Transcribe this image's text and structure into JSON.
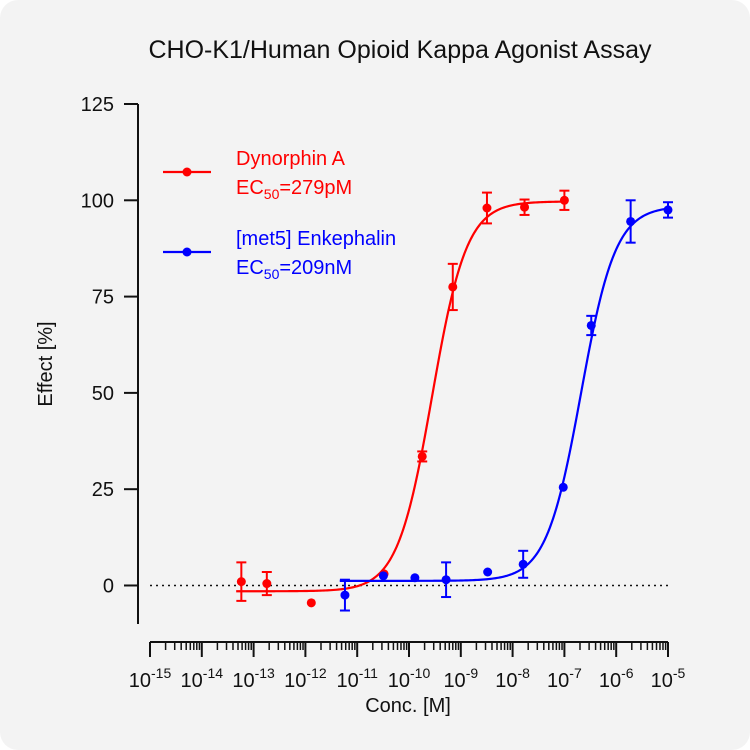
{
  "chart_data": {
    "type": "scatter",
    "title": "CHO-K1/Human Opioid Kappa Agonist Assay",
    "xlabel": "Conc. [M]",
    "ylabel": "Effect  [%]",
    "x_scale": "log10",
    "xlim_exponent": [
      -15,
      -5
    ],
    "ylim": [
      -10,
      125
    ],
    "y_ticks": [
      0,
      25,
      50,
      75,
      100,
      125
    ],
    "x_tick_exponents": [
      -15,
      -14,
      -13,
      -12,
      -11,
      -10,
      -9,
      -8,
      -7,
      -6,
      -5
    ],
    "x_tick_base": "10",
    "reference_line_y": 0,
    "legend_position": "top-left",
    "series": [
      {
        "name": "Dynorphin A",
        "ec50_prefix": "EC",
        "ec50_sub": "50",
        "ec50_value": "=279pM",
        "ec50_molar": 2.79e-10,
        "color": "#ff0000",
        "curve": {
          "bottom": -1.5,
          "top": 99.7,
          "hill": 1.3
        },
        "points": [
          {
            "x": 5.8e-14,
            "y": 1.0,
            "err": 5.0
          },
          {
            "x": 1.8e-13,
            "y": 0.5,
            "err": 3.0
          },
          {
            "x": 1.3e-12,
            "y": -4.5,
            "err": 0
          },
          {
            "x": 3.3e-11,
            "y": 3.0,
            "err": 0
          },
          {
            "x": 1.8e-10,
            "y": 33.5,
            "err": 1.3
          },
          {
            "x": 7e-10,
            "y": 77.5,
            "err": 6.0
          },
          {
            "x": 3.2e-09,
            "y": 98.0,
            "err": 4.0
          },
          {
            "x": 1.7e-08,
            "y": 98.2,
            "err": 2.0
          },
          {
            "x": 1e-07,
            "y": 100.0,
            "err": 2.5
          }
        ]
      },
      {
        "name": "[met5] Enkephalin",
        "ec50_prefix": "EC",
        "ec50_sub": "50",
        "ec50_value": "=209nM",
        "ec50_molar": 2.09e-07,
        "color": "#0000ff",
        "curve": {
          "bottom": 1.2,
          "top": 98.5,
          "hill": 1.3
        },
        "points": [
          {
            "x": 5.8e-12,
            "y": -2.5,
            "err": 4.0
          },
          {
            "x": 3.2e-11,
            "y": 2.5,
            "err": 0
          },
          {
            "x": 1.3e-10,
            "y": 2.0,
            "err": 0
          },
          {
            "x": 5.2e-10,
            "y": 1.5,
            "err": 4.5
          },
          {
            "x": 3.3e-09,
            "y": 3.5,
            "err": 0
          },
          {
            "x": 1.6e-08,
            "y": 5.5,
            "err": 3.5
          },
          {
            "x": 9.5e-08,
            "y": 25.5,
            "err": 0
          },
          {
            "x": 3.3e-07,
            "y": 67.5,
            "err": 2.5
          },
          {
            "x": 1.9e-06,
            "y": 94.5,
            "err": 5.5
          },
          {
            "x": 1e-05,
            "y": 97.5,
            "err": 2.0
          }
        ]
      }
    ]
  }
}
